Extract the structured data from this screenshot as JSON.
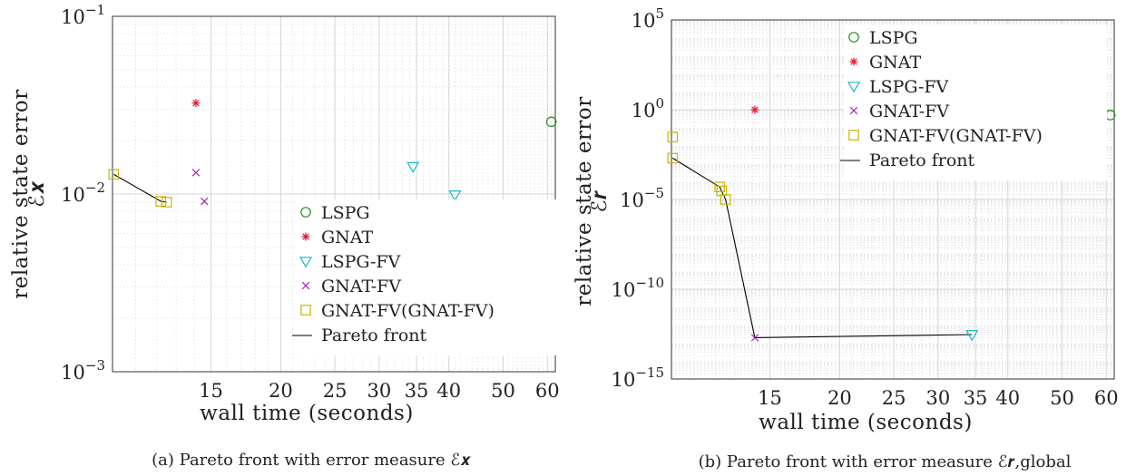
{
  "chart_data": [
    {
      "type": "scatter",
      "panel_id": "a",
      "xscale": "log",
      "yscale": "log",
      "xlim": [
        10,
        62
      ],
      "ylim": [
        0.001,
        0.1
      ],
      "xlabel": "wall time (seconds)",
      "ylabel": "relative state error",
      "ylabel_symbol": "ℰ𝒙",
      "xticks": [
        {
          "v": 15,
          "label": "15"
        },
        {
          "v": 20,
          "label": "20"
        },
        {
          "v": 25,
          "label": "25"
        },
        {
          "v": 30,
          "label": "30"
        },
        {
          "v": 35,
          "label": "35"
        },
        {
          "v": 40,
          "label": "40"
        },
        {
          "v": 50,
          "label": "50"
        },
        {
          "v": 60,
          "label": "60"
        }
      ],
      "yticks": [
        {
          "v": 0.001,
          "base": "10",
          "exp": "−3"
        },
        {
          "v": 0.01,
          "base": "10",
          "exp": "−2"
        },
        {
          "v": 0.1,
          "base": "10",
          "exp": "−1"
        }
      ],
      "grid": true,
      "legend_position": "lower-right",
      "caption": "(a) Pareto front with error measure ℰ𝒙",
      "series": [
        {
          "name": "LSPG",
          "marker": "circle",
          "color": "#1f8f1f",
          "points": [
            [
              61.0,
              0.0255
            ]
          ]
        },
        {
          "name": "GNAT",
          "marker": "asterisk",
          "color": "#e8162e",
          "points": [
            [
              14.1,
              0.0325
            ]
          ]
        },
        {
          "name": "LSPG-FV",
          "marker": "triangle-down",
          "color": "#18b8c8",
          "points": [
            [
              34.5,
              0.0143
            ],
            [
              41.0,
              0.0099
            ]
          ]
        },
        {
          "name": "GNAT-FV",
          "marker": "x",
          "color": "#b21cbf",
          "points": [
            [
              14.1,
              0.0132
            ],
            [
              14.6,
              0.0091
            ]
          ]
        },
        {
          "name": "GNAT-FV(GNAT-FV)",
          "marker": "square",
          "color": "#c9b400",
          "points": [
            [
              10.05,
              0.0129
            ],
            [
              12.2,
              0.0091
            ],
            [
              12.5,
              0.009
            ]
          ]
        },
        {
          "name": "Pareto front",
          "marker": "line",
          "color": "#000000",
          "points": [
            [
              10.05,
              0.0129
            ],
            [
              12.2,
              0.0091
            ],
            [
              12.5,
              0.009
            ]
          ]
        }
      ]
    },
    {
      "type": "scatter",
      "panel_id": "b",
      "xscale": "log",
      "yscale": "log",
      "xlim": [
        10,
        62
      ],
      "ylim": [
        1e-15,
        100000
      ],
      "xlabel": "wall time (seconds)",
      "ylabel": "relative state error",
      "ylabel_symbol": "ℰ𝒓",
      "xticks": [
        {
          "v": 15,
          "label": "15"
        },
        {
          "v": 20,
          "label": "20"
        },
        {
          "v": 25,
          "label": "25"
        },
        {
          "v": 30,
          "label": "30"
        },
        {
          "v": 35,
          "label": "35"
        },
        {
          "v": 40,
          "label": "40"
        },
        {
          "v": 50,
          "label": "50"
        },
        {
          "v": 60,
          "label": "60"
        }
      ],
      "yticks": [
        {
          "v": 1e-15,
          "base": "10",
          "exp": "−15"
        },
        {
          "v": 1e-10,
          "base": "10",
          "exp": "−10"
        },
        {
          "v": 1e-05,
          "base": "10",
          "exp": "−5"
        },
        {
          "v": 1,
          "base": "10",
          "exp": "0"
        },
        {
          "v": 100000,
          "base": "10",
          "exp": "5"
        }
      ],
      "grid": true,
      "legend_position": "top-right",
      "caption": "(b) Pareto front with error measure ℰ𝒓,global",
      "series": [
        {
          "name": "LSPG",
          "marker": "circle",
          "color": "#1f8f1f",
          "points": [
            [
              61.0,
              0.5
            ]
          ]
        },
        {
          "name": "GNAT",
          "marker": "asterisk",
          "color": "#e8162e",
          "points": [
            [
              14.1,
              1.0
            ]
          ]
        },
        {
          "name": "LSPG-FV",
          "marker": "triangle-down",
          "color": "#18b8c8",
          "points": [
            [
              34.5,
              3e-13
            ]
          ]
        },
        {
          "name": "GNAT-FV",
          "marker": "x",
          "color": "#b21cbf",
          "points": [
            [
              14.1,
              2e-13
            ]
          ]
        },
        {
          "name": "GNAT-FV(GNAT-FV)",
          "marker": "square",
          "color": "#c9b400",
          "points": [
            [
              10.05,
              0.03
            ],
            [
              10.05,
              0.002
            ],
            [
              12.2,
              5e-05
            ],
            [
              12.3,
              3e-05
            ],
            [
              12.5,
              1e-05
            ]
          ]
        },
        {
          "name": "Pareto front",
          "marker": "line",
          "color": "#000000",
          "points": [
            [
              10.05,
              0.002
            ],
            [
              12.2,
              5e-05
            ],
            [
              12.5,
              1e-05
            ],
            [
              14.1,
              2e-13
            ],
            [
              34.5,
              3e-13
            ]
          ]
        }
      ]
    }
  ]
}
